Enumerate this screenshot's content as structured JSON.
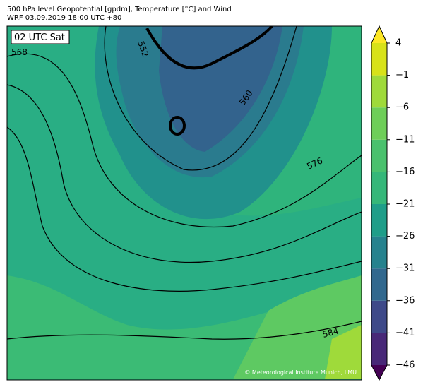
{
  "header": {
    "title": "500 hPa level Geopotential [gpdm], Temperature [°C] and Wind",
    "subtitle": "WRF 03.09.2019 18:00 UTC +80"
  },
  "map": {
    "time_label": "02 UTC Sat",
    "contour_labels": [
      "552",
      "560",
      "568",
      "576",
      "584"
    ],
    "credit": "© Meteorological Institute Munich, LMU"
  },
  "colorbar": {
    "ticks": [
      {
        "value": -46,
        "label": "−46"
      },
      {
        "value": -41,
        "label": "−41"
      },
      {
        "value": -36,
        "label": "−36"
      },
      {
        "value": -31,
        "label": "−31"
      },
      {
        "value": -26,
        "label": "−26"
      },
      {
        "value": -21,
        "label": "−21"
      },
      {
        "value": -16,
        "label": "−16"
      },
      {
        "value": -11,
        "label": "−11"
      },
      {
        "value": -6,
        "label": "−6"
      },
      {
        "value": -1,
        "label": "−1"
      },
      4
    ],
    "colors": [
      "#482878",
      "#3e4989",
      "#31688e",
      "#26828e",
      "#1f9e89",
      "#35b779",
      "#4ac16d",
      "#6ece58",
      "#9fda3a",
      "#d8e219"
    ],
    "under_color": "#440154",
    "over_color": "#fde725"
  }
}
